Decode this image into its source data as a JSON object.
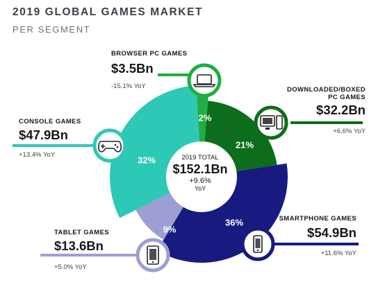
{
  "title": "2019 GLOBAL GAMES MARKET",
  "subtitle": "PER SEGMENT",
  "center": {
    "label": "2019 TOTAL",
    "value": "$152.1Bn",
    "yoy": "+9.6%",
    "yoy_unit": "YoY"
  },
  "chart_data": {
    "type": "pie",
    "title": "2019 GLOBAL GAMES MARKET",
    "subtitle": "PER SEGMENT",
    "total": 152.1,
    "unit": "$Bn",
    "slices": [
      {
        "name": "BROWSER PC GAMES",
        "value": 3.5,
        "value_label": "$3.5Bn",
        "percent": 2,
        "percent_label": "2%",
        "yoy": "-15.1% YoY",
        "color": "#1fae42",
        "icon": "laptop-icon"
      },
      {
        "name": "DOWNLOADED/BOXED PC GAMES",
        "value": 32.2,
        "value_label": "$32.2Bn",
        "percent": 21,
        "percent_label": "21%",
        "yoy": "+6.6% YoY",
        "color": "#0d6d1c",
        "icon": "desktop-pc-icon"
      },
      {
        "name": "SMARTPHONE GAMES",
        "value": 54.9,
        "value_label": "$54.9Bn",
        "percent": 36,
        "percent_label": "36%",
        "yoy": "+11.6% YoY",
        "color": "#181a80",
        "icon": "smartphone-icon"
      },
      {
        "name": "TABLET GAMES",
        "value": 13.6,
        "value_label": "$13.6Bn",
        "percent": 9,
        "percent_label": "9%",
        "yoy": "+5.0% YoY",
        "color": "#9d9fd3",
        "icon": "tablet-icon"
      },
      {
        "name": "CONSOLE GAMES",
        "value": 47.9,
        "value_label": "$47.9Bn",
        "percent": 32,
        "percent_label": "32%",
        "yoy": "+13.4% YoY",
        "color": "#2ec8b6",
        "icon": "gamepad-icon"
      }
    ]
  }
}
